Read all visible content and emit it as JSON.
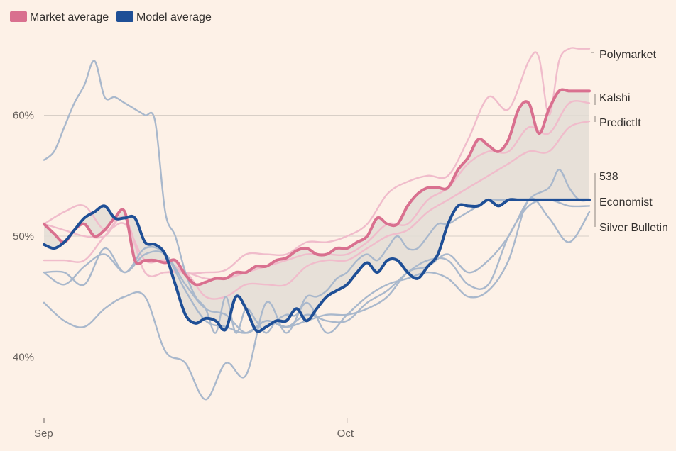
{
  "chart_data": {
    "type": "line",
    "title": "",
    "xlabel": "",
    "ylabel": "",
    "x_ticks": [
      {
        "day": 0,
        "label": "Sep"
      },
      {
        "day": 30,
        "label": "Oct"
      }
    ],
    "y_ticks": [
      {
        "value": 40,
        "label": "40%"
      },
      {
        "value": 50,
        "label": "50%"
      },
      {
        "value": 60,
        "label": "60%"
      }
    ],
    "ylim": [
      35,
      67
    ],
    "xlim": [
      0,
      54
    ],
    "grid": "horizontal",
    "legend": {
      "position": "top-left",
      "items": [
        {
          "name": "Market average",
          "color": "#d9708f"
        },
        {
          "name": "Model average",
          "color": "#1f4f96"
        }
      ]
    },
    "colors": {
      "market_average": "#d9708f",
      "model_average": "#1f4f96",
      "market_source": "#f0bccb",
      "model_source": "#a9b8cc",
      "band": "#e3ddd5"
    },
    "series": [
      {
        "name": "Market average",
        "role": "market_avg",
        "x": [
          0,
          1,
          2,
          3,
          4,
          5,
          6,
          7,
          8,
          9,
          10,
          11,
          12,
          13,
          14,
          15,
          16,
          17,
          18,
          19,
          20,
          21,
          22,
          23,
          24,
          25,
          26,
          27,
          28,
          29,
          30,
          31,
          32,
          33,
          34,
          35,
          36,
          37,
          38,
          39,
          40,
          41,
          42,
          43,
          44,
          45,
          46,
          47,
          48,
          49,
          50,
          51,
          52,
          53,
          54
        ],
        "values": [
          51,
          50.2,
          49.5,
          50.5,
          51,
          50,
          50.5,
          51.5,
          52,
          48,
          48,
          48,
          47.8,
          48,
          46.8,
          46,
          46.2,
          46.5,
          46.5,
          47,
          47,
          47.5,
          47.5,
          48,
          48.2,
          48.8,
          49,
          48.5,
          48.5,
          49,
          49,
          49.5,
          50,
          51.5,
          51,
          51,
          52.5,
          53.5,
          54,
          54,
          54,
          55.5,
          56.5,
          58,
          57.5,
          57,
          58,
          60.5,
          61,
          58.5,
          60.5,
          62,
          62,
          62,
          62
        ]
      },
      {
        "name": "Model average",
        "role": "model_avg",
        "x": [
          0,
          1,
          2,
          3,
          4,
          5,
          6,
          7,
          8,
          9,
          10,
          11,
          12,
          13,
          14,
          15,
          16,
          17,
          18,
          19,
          20,
          21,
          22,
          23,
          24,
          25,
          26,
          27,
          28,
          29,
          30,
          31,
          32,
          33,
          34,
          35,
          36,
          37,
          38,
          39,
          40,
          41,
          42,
          43,
          44,
          45,
          46,
          47,
          48,
          49,
          50,
          51,
          52,
          53,
          54
        ],
        "values": [
          49.3,
          49,
          49.5,
          50.5,
          51.5,
          52,
          52.5,
          51.5,
          51.5,
          51.5,
          49.5,
          49.3,
          48.5,
          46,
          43.5,
          42.8,
          43.2,
          43,
          42.3,
          45,
          44,
          42.2,
          42.5,
          43,
          43,
          44,
          43,
          44,
          45,
          45.5,
          46,
          47,
          47.8,
          47,
          48,
          48,
          47,
          46.5,
          47.5,
          48.5,
          51,
          52.5,
          52.5,
          52.5,
          53,
          52.5,
          53,
          53,
          53,
          53,
          53,
          53,
          53,
          53,
          53
        ]
      },
      {
        "name": "Polymarket",
        "role": "market",
        "x": [
          0,
          2,
          4,
          6,
          8,
          10,
          12,
          14,
          16,
          18,
          20,
          22,
          24,
          26,
          28,
          30,
          32,
          34,
          36,
          38,
          40,
          42,
          44,
          46,
          48,
          49,
          50,
          51,
          52,
          53,
          54
        ],
        "values": [
          51,
          52,
          52.5,
          50.5,
          51,
          48,
          48,
          47,
          47,
          47.2,
          48.5,
          48.5,
          48.5,
          49.5,
          49.5,
          50,
          51,
          53.5,
          54.5,
          55,
          55,
          58,
          61.5,
          60.5,
          64.5,
          64.8,
          60,
          64.5,
          65.5,
          65.5,
          65.5
        ]
      },
      {
        "name": "Kalshi",
        "role": "market",
        "x": [
          0,
          2,
          4,
          6,
          8,
          10,
          12,
          14,
          16,
          18,
          20,
          22,
          24,
          26,
          28,
          30,
          32,
          34,
          36,
          38,
          40,
          42,
          44,
          46,
          48,
          50,
          52,
          54
        ],
        "values": [
          48,
          48,
          48,
          50,
          51.5,
          47,
          47,
          47,
          46.5,
          46.5,
          47,
          47.5,
          48,
          48.5,
          48.5,
          48.5,
          49.5,
          51,
          51,
          53,
          54,
          56,
          57,
          57,
          59,
          58.5,
          61,
          61
        ]
      },
      {
        "name": "PredictIt",
        "role": "market",
        "x": [
          0,
          2,
          4,
          6,
          8,
          10,
          12,
          14,
          16,
          18,
          20,
          22,
          24,
          26,
          28,
          30,
          32,
          34,
          36,
          38,
          40,
          42,
          44,
          46,
          48,
          50,
          52,
          54
        ],
        "values": [
          51,
          50.5,
          50,
          50,
          51.5,
          47,
          47,
          47,
          45,
          45,
          46,
          46,
          46,
          47.5,
          48,
          48,
          49,
          50,
          50.5,
          52,
          53,
          54,
          55,
          56,
          57,
          57,
          59,
          59.5
        ]
      },
      {
        "name": "538",
        "role": "model",
        "x": [
          0,
          2,
          4,
          6,
          8,
          10,
          12,
          14,
          16,
          18,
          20,
          22,
          24,
          26,
          28,
          30,
          32,
          34,
          36,
          38,
          40,
          42,
          44,
          46,
          48,
          50,
          51,
          52,
          53,
          54
        ],
        "values": [
          47,
          46,
          47.5,
          48.5,
          47,
          48.5,
          48.5,
          46,
          44,
          43.5,
          42,
          43,
          42.5,
          43,
          43.5,
          43.5,
          44,
          45,
          47,
          47.5,
          48.5,
          47,
          48,
          50,
          53,
          54,
          55.5,
          54,
          53,
          53
        ]
      },
      {
        "name": "Economist",
        "role": "model",
        "x": [
          0,
          2,
          4,
          6,
          8,
          10,
          12,
          14,
          16,
          18,
          20,
          22,
          24,
          26,
          28,
          30,
          32,
          34,
          36,
          38,
          40,
          42,
          44,
          46,
          48,
          50,
          52,
          54
        ],
        "values": [
          47,
          47,
          46,
          49,
          47,
          49,
          48.5,
          45.5,
          43,
          42.5,
          42,
          43,
          42.5,
          43.5,
          43,
          43,
          44.5,
          45.5,
          47,
          48,
          48,
          46,
          46,
          50,
          52.5,
          53,
          52.5,
          52.5
        ]
      },
      {
        "name": "Silver Bulletin",
        "role": "model",
        "x": [
          0,
          2,
          4,
          6,
          8,
          10,
          12,
          14,
          16,
          18,
          20,
          22,
          24,
          26,
          28,
          30,
          32,
          34,
          36,
          38,
          40,
          42,
          44,
          46,
          48,
          50,
          52,
          54
        ],
        "values": [
          44.5,
          43,
          42.5,
          44,
          45,
          45,
          40.5,
          39.5,
          36.5,
          39.5,
          38.5,
          44.5,
          42,
          44.5,
          42,
          43.5,
          45,
          46,
          46.5,
          47,
          46.5,
          45,
          45.5,
          48,
          53,
          51.5,
          49.5,
          52
        ]
      },
      {
        "name": "",
        "role": "model",
        "x": [
          0,
          1,
          2,
          3,
          4,
          5,
          6,
          7,
          8,
          9,
          10,
          11,
          12,
          13,
          14,
          15,
          16,
          17,
          18,
          19,
          20,
          21,
          22,
          23,
          24,
          25,
          26,
          27,
          28,
          29,
          30,
          31,
          32,
          33,
          34,
          35,
          36,
          37,
          38,
          39,
          40,
          41,
          42,
          43,
          44,
          45,
          46,
          47,
          48,
          49,
          50,
          51,
          52,
          53,
          54
        ],
        "values": [
          56.3,
          57,
          59,
          61,
          62.5,
          64.5,
          61.5,
          61.5,
          61,
          60.5,
          60,
          59.5,
          52,
          50,
          47,
          45,
          44,
          42,
          45,
          42,
          44,
          43,
          42,
          43,
          43.5,
          43.5,
          45,
          45,
          45.5,
          46.5,
          47,
          48,
          48.5,
          48,
          49,
          50,
          49,
          49,
          50,
          51,
          51,
          51.5,
          52,
          52.5,
          53,
          53,
          53,
          53,
          53,
          53,
          53,
          53,
          53,
          53,
          53
        ]
      }
    ],
    "end_labels": [
      "Polymarket",
      "Kalshi",
      "PredictIt",
      "538",
      "Economist",
      "Silver Bulletin"
    ]
  }
}
